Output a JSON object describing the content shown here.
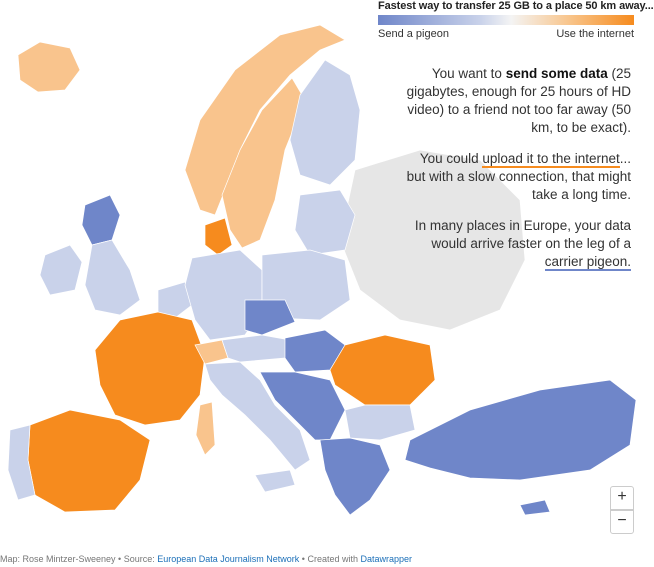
{
  "legend": {
    "title": "Fastest way to transfer 25 GB to a place 50 km away...",
    "left_label": "Send a pigeon",
    "right_label": "Use the internet",
    "colors": {
      "pigeon": "#6f86c9",
      "mid": "#f4f4f4",
      "internet": "#f68b1e"
    }
  },
  "text": {
    "p1_a": "You want to ",
    "p1_bold": "send some data",
    "p1_b": " (25 gigabytes, enough for 25 hours of HD video) to a friend not too far away (50 km, to be exact).",
    "p2_a": "You could ",
    "p2_link": "upload it to the internet",
    "p2_b": "... but with a slow connection, that might take a long time.",
    "p3_a": "In many places in Europe, your data would arrive faster on the leg of a ",
    "p3_link": "carrier pigeon."
  },
  "zoom": {
    "in_label": "+",
    "out_label": "−"
  },
  "footer": {
    "map_by": "Map: Rose Mintzer-Sweeney • Source: ",
    "source": "European Data Journalism Network",
    "created": " • Created with ",
    "tool": "Datawrapper"
  },
  "map_data": {
    "colors": {
      "non_data": "#e6e6e6",
      "strong_pigeon": "#6f86c9",
      "light_pigeon": "#c9d2ea",
      "neutral": "#f1f1f1",
      "light_internet": "#f9c48d",
      "strong_internet": "#f68b1e"
    },
    "regions": [
      {
        "name": "Iceland",
        "value": "light_internet"
      },
      {
        "name": "Norway",
        "value": "light_internet"
      },
      {
        "name": "Sweden",
        "value": "light_internet"
      },
      {
        "name": "Finland",
        "value": "light_pigeon"
      },
      {
        "name": "Baltics",
        "value": "light_pigeon"
      },
      {
        "name": "Ireland",
        "value": "light_pigeon"
      },
      {
        "name": "Great Britain",
        "value": "light_pigeon"
      },
      {
        "name": "Scotland",
        "value": "strong_pigeon"
      },
      {
        "name": "France",
        "value": "strong_internet"
      },
      {
        "name": "Spain",
        "value": "strong_internet"
      },
      {
        "name": "Portugal",
        "value": "light_pigeon"
      },
      {
        "name": "Benelux",
        "value": "light_pigeon"
      },
      {
        "name": "Germany",
        "value": "light_pigeon"
      },
      {
        "name": "Poland",
        "value": "light_pigeon"
      },
      {
        "name": "Czechia",
        "value": "strong_pigeon"
      },
      {
        "name": "Austria",
        "value": "light_pigeon"
      },
      {
        "name": "Switzerland",
        "value": "light_internet"
      },
      {
        "name": "Hungary",
        "value": "strong_pigeon"
      },
      {
        "name": "Italy",
        "value": "light_pigeon"
      },
      {
        "name": "Balkans",
        "value": "strong_pigeon"
      },
      {
        "name": "Romania",
        "value": "strong_internet"
      },
      {
        "name": "Bulgaria",
        "value": "light_pigeon"
      },
      {
        "name": "Greece",
        "value": "strong_pigeon"
      },
      {
        "name": "Turkey",
        "value": "strong_pigeon"
      },
      {
        "name": "Denmark",
        "value": "strong_internet"
      },
      {
        "name": "Belarus/Ukraine",
        "value": "non_data"
      },
      {
        "name": "Corsica/Sardinia",
        "value": "light_internet"
      },
      {
        "name": "Sicily",
        "value": "light_pigeon"
      },
      {
        "name": "Cyprus",
        "value": "strong_pigeon"
      }
    ]
  }
}
